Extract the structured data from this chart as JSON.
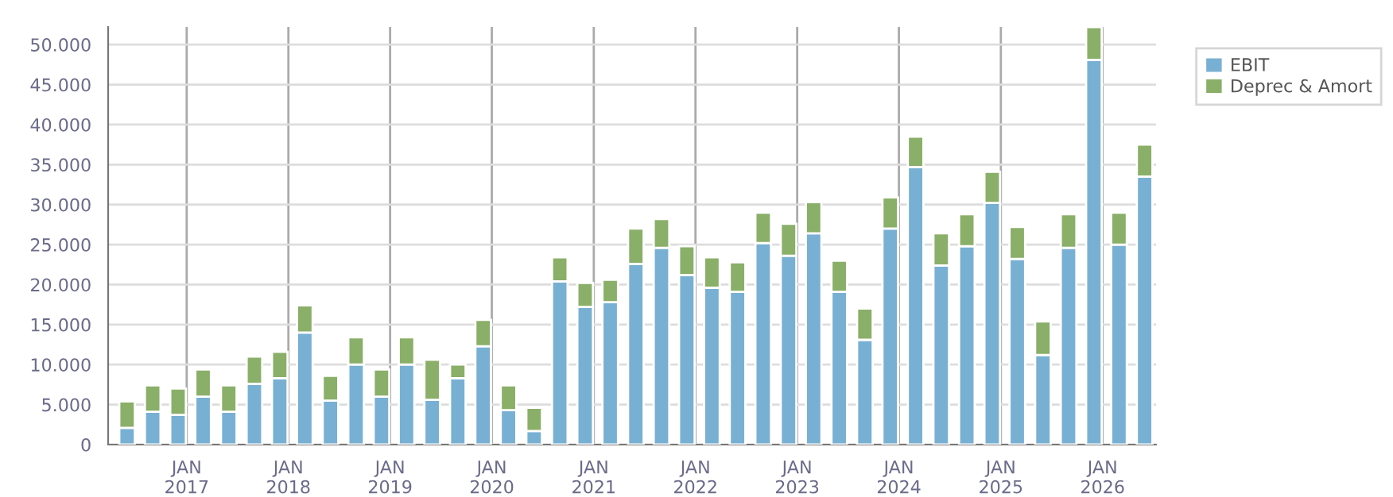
{
  "chart_data": {
    "type": "bar",
    "stacked": true,
    "x": [
      "2016-06",
      "2016-09",
      "2016-12",
      "2017-03",
      "2017-06",
      "2017-09",
      "2017-12",
      "2018-03",
      "2018-06",
      "2018-09",
      "2018-12",
      "2019-03",
      "2019-06",
      "2019-09",
      "2019-12",
      "2020-03",
      "2020-06",
      "2020-09",
      "2020-12",
      "2021-03",
      "2021-06",
      "2021-09",
      "2021-12",
      "2022-03",
      "2022-06",
      "2022-09",
      "2022-12",
      "2023-03",
      "2023-06",
      "2023-09",
      "2023-12",
      "2024-03",
      "2024-06",
      "2024-09",
      "2024-12",
      "2025-03",
      "2025-06",
      "2025-09",
      "2025-12",
      "2026-03",
      "2026-06"
    ],
    "series": [
      {
        "name": "EBIT",
        "color": "#78b0d3",
        "values": [
          2100,
          4100,
          3700,
          6000,
          4100,
          7600,
          8300,
          14000,
          5500,
          10000,
          6000,
          10000,
          5600,
          8300,
          12300,
          4300,
          1700,
          20400,
          17200,
          17800,
          22600,
          24600,
          21200,
          19600,
          19100,
          25200,
          23600,
          26400,
          19100,
          13100,
          27000,
          34700,
          22400,
          24800,
          30200,
          23200,
          11200,
          24600,
          48100,
          25000,
          33500
        ]
      },
      {
        "name": "Deprec & Amort",
        "color": "#8aaf68",
        "values": [
          3300,
          3300,
          3300,
          3400,
          3300,
          3400,
          3300,
          3400,
          3100,
          3400,
          3400,
          3400,
          5000,
          1700,
          3300,
          3100,
          2900,
          3000,
          3000,
          2800,
          4400,
          3600,
          3600,
          3800,
          3700,
          3800,
          4000,
          3900,
          3900,
          3900,
          3900,
          3800,
          4000,
          4000,
          3900,
          4000,
          4200,
          4200,
          4100,
          4000,
          4000
        ]
      }
    ],
    "xlim": [
      "2016-03-25",
      "2026-07-12"
    ],
    "xticks": [
      {
        "value": "2017-01",
        "label": "JAN\n2017"
      },
      {
        "value": "2018-01",
        "label": "JAN\n2018"
      },
      {
        "value": "2019-01",
        "label": "JAN\n2019"
      },
      {
        "value": "2020-01",
        "label": "JAN\n2020"
      },
      {
        "value": "2021-01",
        "label": "JAN\n2021"
      },
      {
        "value": "2022-01",
        "label": "JAN\n2022"
      },
      {
        "value": "2023-01",
        "label": "JAN\n2023"
      },
      {
        "value": "2024-01",
        "label": "JAN\n2024"
      },
      {
        "value": "2025-01",
        "label": "JAN\n2025"
      },
      {
        "value": "2026-01",
        "label": "JAN\n2026"
      }
    ],
    "ylim": [
      0,
      52200
    ],
    "yticks": [
      0,
      {
        "value": 5000,
        "label": "5.000"
      },
      {
        "value": 10000,
        "label": "10.000"
      },
      {
        "value": 15000,
        "label": "15.000"
      },
      {
        "value": 20000,
        "label": "20.000"
      },
      {
        "value": 25000,
        "label": "25.000"
      },
      {
        "value": 30000,
        "label": "30.000"
      },
      {
        "value": 35000,
        "label": "35.000"
      },
      {
        "value": 40000,
        "label": "40.000"
      },
      {
        "value": 45000,
        "label": "45.000"
      },
      {
        "value": 50000,
        "label": "50.000"
      }
    ],
    "grid": true,
    "legend": "top right"
  }
}
